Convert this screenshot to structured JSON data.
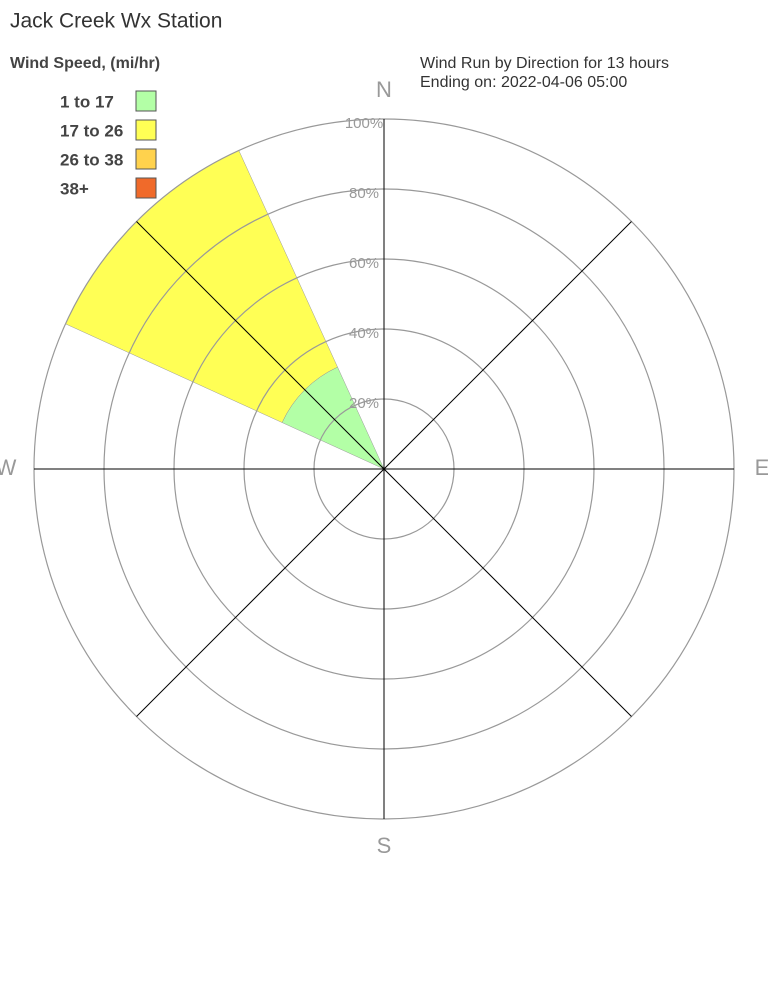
{
  "chart_data": {
    "type": "windrose",
    "title": "Jack Creek Wx Station",
    "legend_title": "Wind Speed, (mi/hr)",
    "subtitle": [
      "Wind Run by Direction for 13 hours",
      "Ending on: 2022-04-06 05:00"
    ],
    "categories": [
      "N",
      null,
      "E",
      null,
      "S",
      null,
      "W",
      null
    ],
    "series": [
      {
        "name": "1 to 17",
        "color": "#b3ffa6",
        "values": [
          0,
          0,
          0,
          0,
          0,
          0,
          0,
          32
        ]
      },
      {
        "name": "17 to 26",
        "color": "#ffff55",
        "values": [
          0,
          0,
          0,
          0,
          0,
          0,
          0,
          68
        ]
      },
      {
        "name": "26 to 38",
        "color": "#ffd24d",
        "values": [
          0,
          0,
          0,
          0,
          0,
          0,
          0,
          0
        ]
      },
      {
        "name": "38+",
        "color": "#f06a2a",
        "values": [
          0,
          0,
          0,
          0,
          0,
          0,
          0,
          0
        ]
      }
    ],
    "rlim": [
      0,
      100
    ],
    "rticks": [
      {
        "value": 20,
        "label": "20%"
      },
      {
        "value": 40,
        "label": "40%"
      },
      {
        "value": 60,
        "label": "60%"
      },
      {
        "value": 80,
        "label": "80%"
      },
      {
        "value": 100,
        "label": "100%"
      }
    ]
  }
}
